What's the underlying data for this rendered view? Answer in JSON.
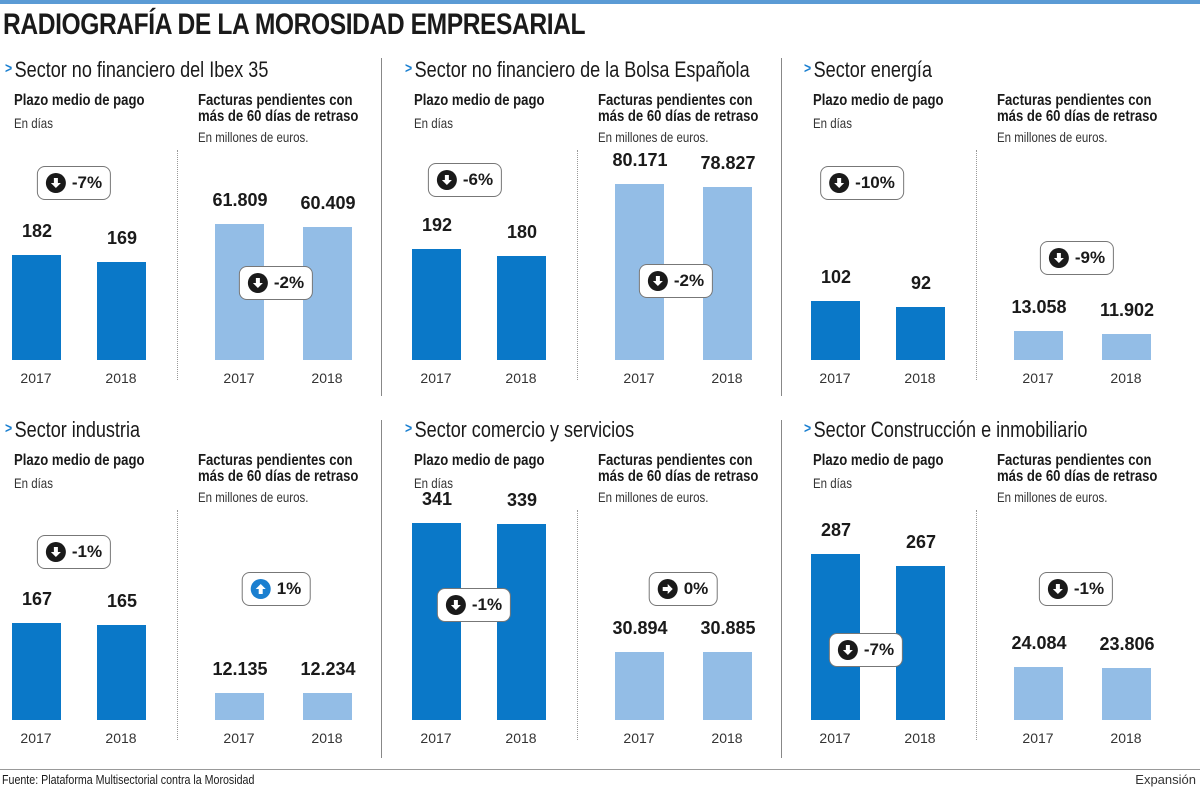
{
  "title": "RADIOGRAFÍA DE LA MOROSIDAD EMPRESARIAL",
  "footer": {
    "source_label": "Fuente:",
    "source": "Plataforma Multisectorial contra la Morosidad",
    "credit": "Expansión"
  },
  "colors": {
    "days_bar": "#0a78c8",
    "invoices_bar": "#93bde6",
    "accent": "#1a7fd0"
  },
  "chart_data": {
    "type": "bar",
    "categories": [
      "2017",
      "2018"
    ],
    "left_title": "Plazo medio de pago",
    "left_unit": "En días",
    "right_title": [
      "Facturas pendientes con",
      "más de 60 días de retraso"
    ],
    "right_unit": "En millones de euros.",
    "panels": [
      {
        "sector": "Sector no financiero del Ibex 35",
        "days": {
          "values": [
            182,
            169
          ],
          "labels": [
            "182",
            "169"
          ],
          "change": "-7%",
          "dir": "down"
        },
        "invoices": {
          "values": [
            61.809,
            60.409
          ],
          "labels": [
            "61.809",
            "60.409"
          ],
          "change": "-2%",
          "dir": "down"
        }
      },
      {
        "sector": "Sector no financiero de la Bolsa Española",
        "days": {
          "values": [
            192,
            180
          ],
          "labels": [
            "192",
            "180"
          ],
          "change": "-6%",
          "dir": "down"
        },
        "invoices": {
          "values": [
            80.171,
            78.827
          ],
          "labels": [
            "80.171",
            "78.827"
          ],
          "change": "-2%",
          "dir": "down"
        }
      },
      {
        "sector": "Sector energía",
        "days": {
          "values": [
            102,
            92
          ],
          "labels": [
            "102",
            "92"
          ],
          "change": "-10%",
          "dir": "down"
        },
        "invoices": {
          "values": [
            13.058,
            11.902
          ],
          "labels": [
            "13.058",
            "11.902"
          ],
          "change": "-9%",
          "dir": "down"
        }
      },
      {
        "sector": "Sector industria",
        "days": {
          "values": [
            167,
            165
          ],
          "labels": [
            "167",
            "165"
          ],
          "change": "-1%",
          "dir": "down"
        },
        "invoices": {
          "values": [
            12.135,
            12.234
          ],
          "labels": [
            "12.135",
            "12.234"
          ],
          "change": "1%",
          "dir": "up"
        }
      },
      {
        "sector": "Sector comercio y servicios",
        "days": {
          "values": [
            341,
            339
          ],
          "labels": [
            "341",
            "339"
          ],
          "change": "-1%",
          "dir": "down"
        },
        "invoices": {
          "values": [
            30.894,
            30.885
          ],
          "labels": [
            "30.894",
            "30.885"
          ],
          "change": "0%",
          "dir": "flat"
        }
      },
      {
        "sector": "Sector Construcción e inmobiliario",
        "days": {
          "values": [
            287,
            267
          ],
          "labels": [
            "287",
            "267"
          ],
          "change": "-7%",
          "dir": "down"
        },
        "invoices": {
          "values": [
            24.084,
            23.806
          ],
          "labels": [
            "24.084",
            "23.806"
          ],
          "change": "-1%",
          "dir": "down"
        }
      }
    ]
  }
}
